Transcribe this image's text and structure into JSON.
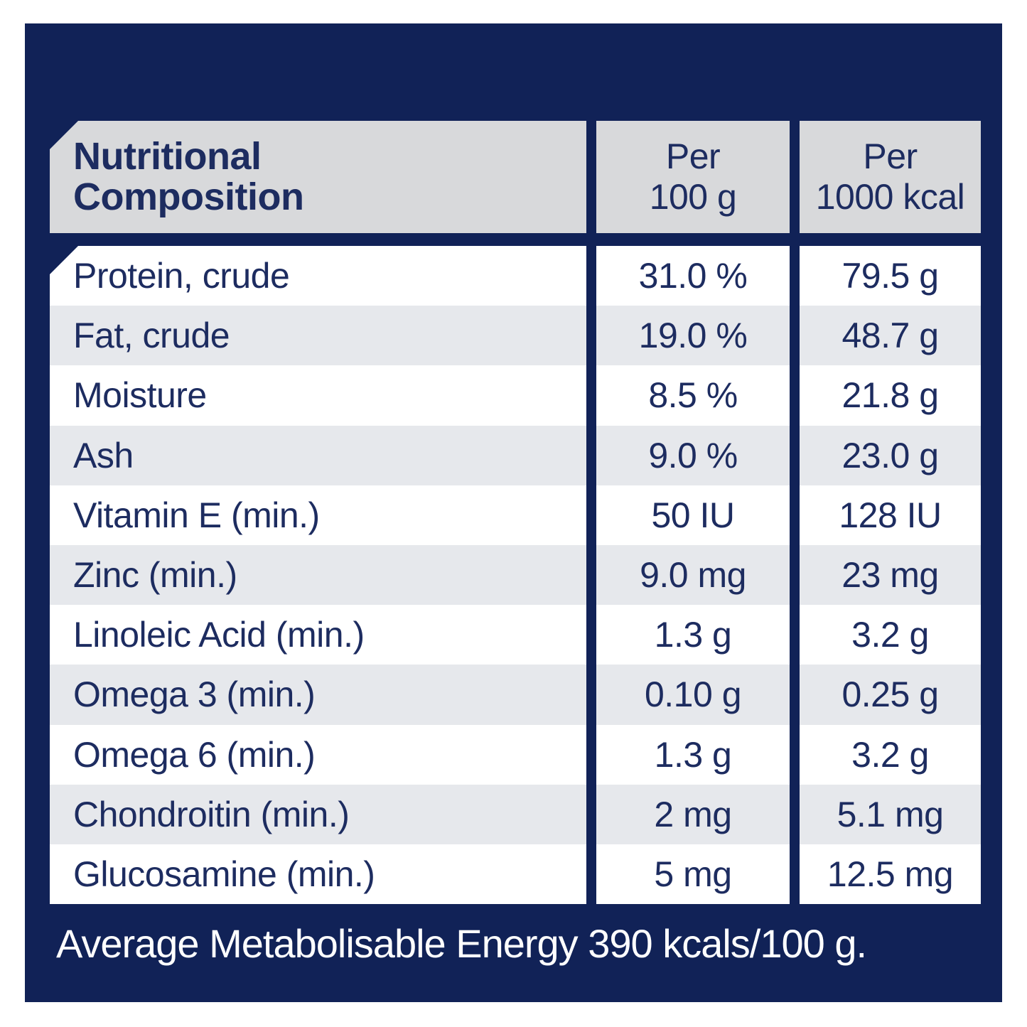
{
  "header": {
    "col1_line1": "Nutritional",
    "col1_line2": "Composition",
    "col2_line1": "Per",
    "col2_line2": "100 g",
    "col3_line1": "Per",
    "col3_line2": "1000 kcal"
  },
  "rows": [
    {
      "label": "Protein, crude",
      "per_100g": "31.0 %",
      "per_1000kcal": "79.5 g"
    },
    {
      "label": "Fat, crude",
      "per_100g": "19.0 %",
      "per_1000kcal": "48.7 g"
    },
    {
      "label": "Moisture",
      "per_100g": "8.5 %",
      "per_1000kcal": "21.8 g"
    },
    {
      "label": "Ash",
      "per_100g": "9.0 %",
      "per_1000kcal": "23.0 g"
    },
    {
      "label": "Vitamin E (min.)",
      "per_100g": "50 IU",
      "per_1000kcal": "128 IU"
    },
    {
      "label": "Zinc (min.)",
      "per_100g": "9.0 mg",
      "per_1000kcal": "23 mg"
    },
    {
      "label": "Linoleic Acid (min.)",
      "per_100g": "1.3 g",
      "per_1000kcal": "3.2 g"
    },
    {
      "label": "Omega 3 (min.)",
      "per_100g": "0.10 g",
      "per_1000kcal": "0.25 g"
    },
    {
      "label": "Omega 6 (min.)",
      "per_100g": "1.3 g",
      "per_1000kcal": "3.2 g"
    },
    {
      "label": "Chondroitin (min.)",
      "per_100g": "2 mg",
      "per_1000kcal": "5.1 mg"
    },
    {
      "label": "Glucosamine (min.)",
      "per_100g": "5 mg",
      "per_1000kcal": "12.5 mg"
    }
  ],
  "footer": {
    "text": "Average Metabolisable Energy 390 kcals/100 g."
  },
  "colors": {
    "panel_navy": "#112257",
    "header_gray": "#d8d9db",
    "row_gray": "#e6e8ec",
    "row_white": "#ffffff",
    "text_navy": "#1d2c60",
    "footer_text": "#ffffff"
  }
}
